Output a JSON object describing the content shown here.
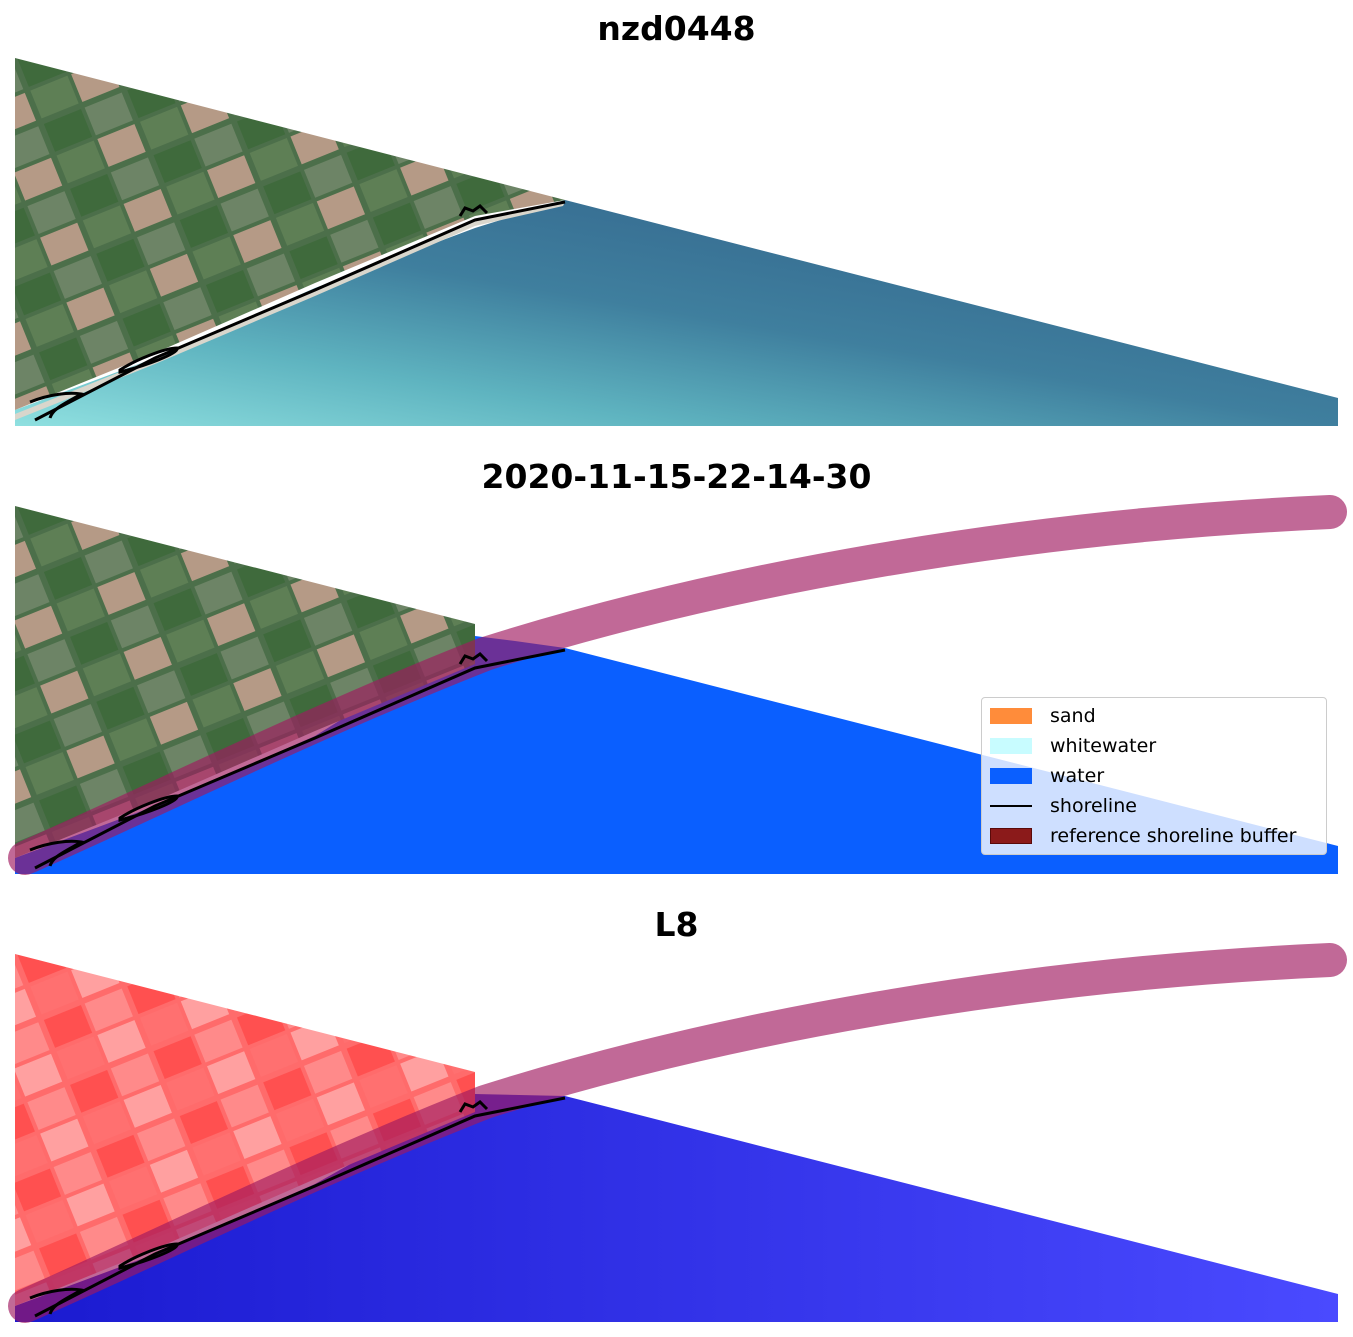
{
  "panels": [
    {
      "title": "nzd0448"
    },
    {
      "title": "2020-11-15-22-14-30"
    },
    {
      "title": "L8"
    }
  ],
  "legend": {
    "items": [
      {
        "label": "sand",
        "color": "#ff8c3a"
      },
      {
        "label": "whitewater",
        "color": "#c8fcff"
      },
      {
        "label": "water",
        "color": "#0a5fff"
      },
      {
        "label": "shoreline",
        "color": "#000000"
      },
      {
        "label": "reference shoreline buffer",
        "color": "#8b1a1a"
      }
    ]
  },
  "colors": {
    "farmland": "#4c6f4a",
    "ocean_shallow": "#7fd3d6",
    "ocean_deep": "#2d5f84",
    "water_class": "#0a5fff",
    "buffer": "#a0195f",
    "index_land": "#ff6060",
    "index_water": "#2a2aee"
  }
}
